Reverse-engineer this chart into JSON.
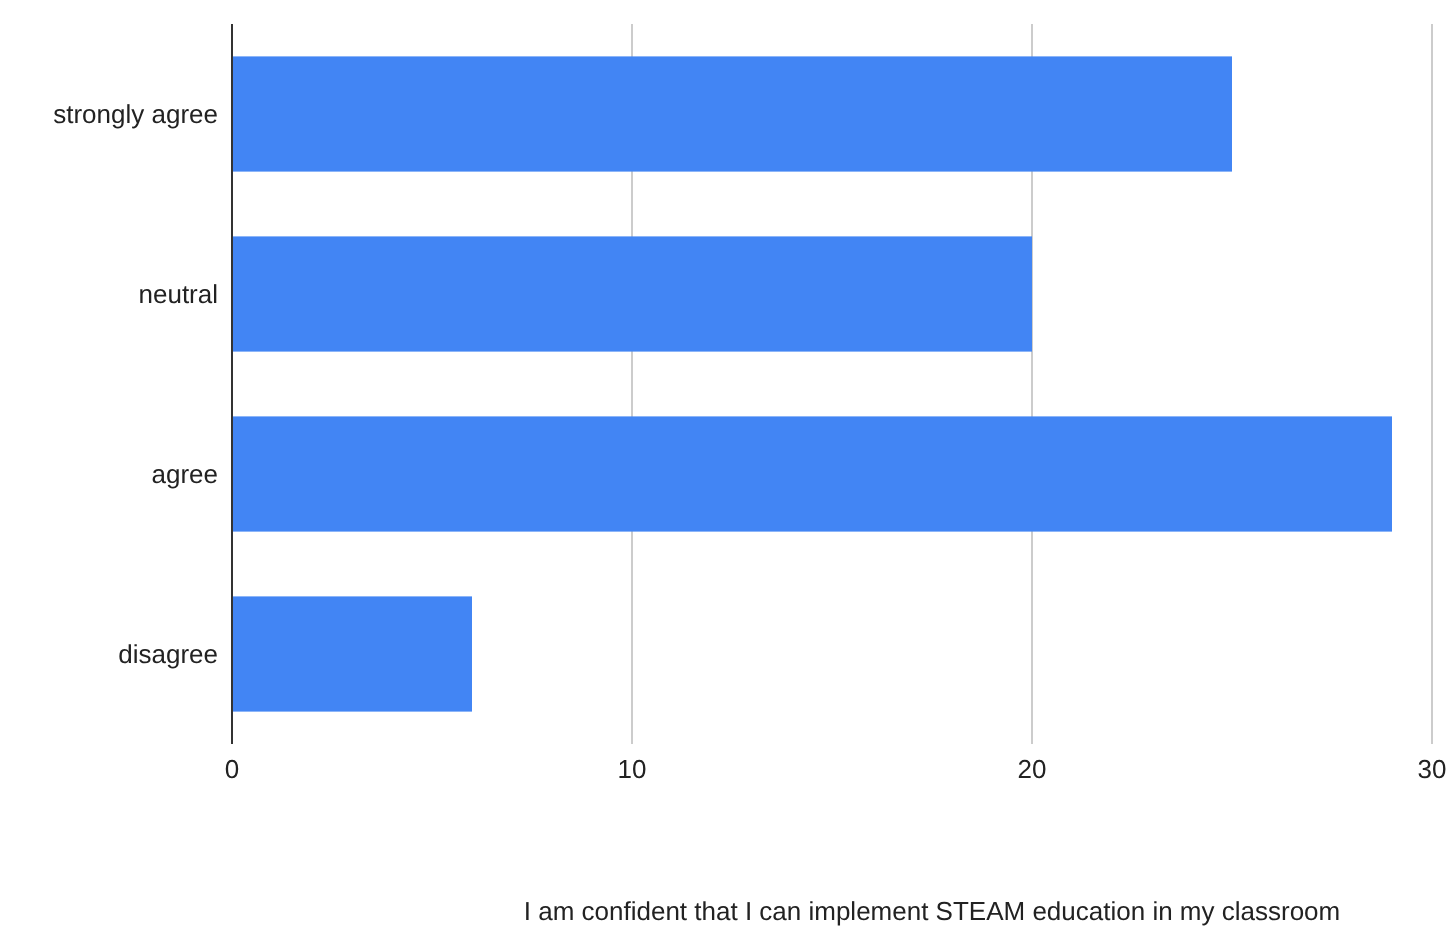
{
  "chart_data": {
    "type": "bar",
    "orientation": "horizontal",
    "xlabel": "I am confident that I can implement STEAM education in my classroom",
    "categories": [
      "strongly agree",
      "neutral",
      "agree",
      "disagree"
    ],
    "values": [
      25,
      20,
      29,
      6
    ],
    "color": "#4285f4",
    "xlim": [
      0,
      30
    ],
    "xticks": [
      0,
      10,
      20,
      30
    ],
    "grid": "x"
  }
}
